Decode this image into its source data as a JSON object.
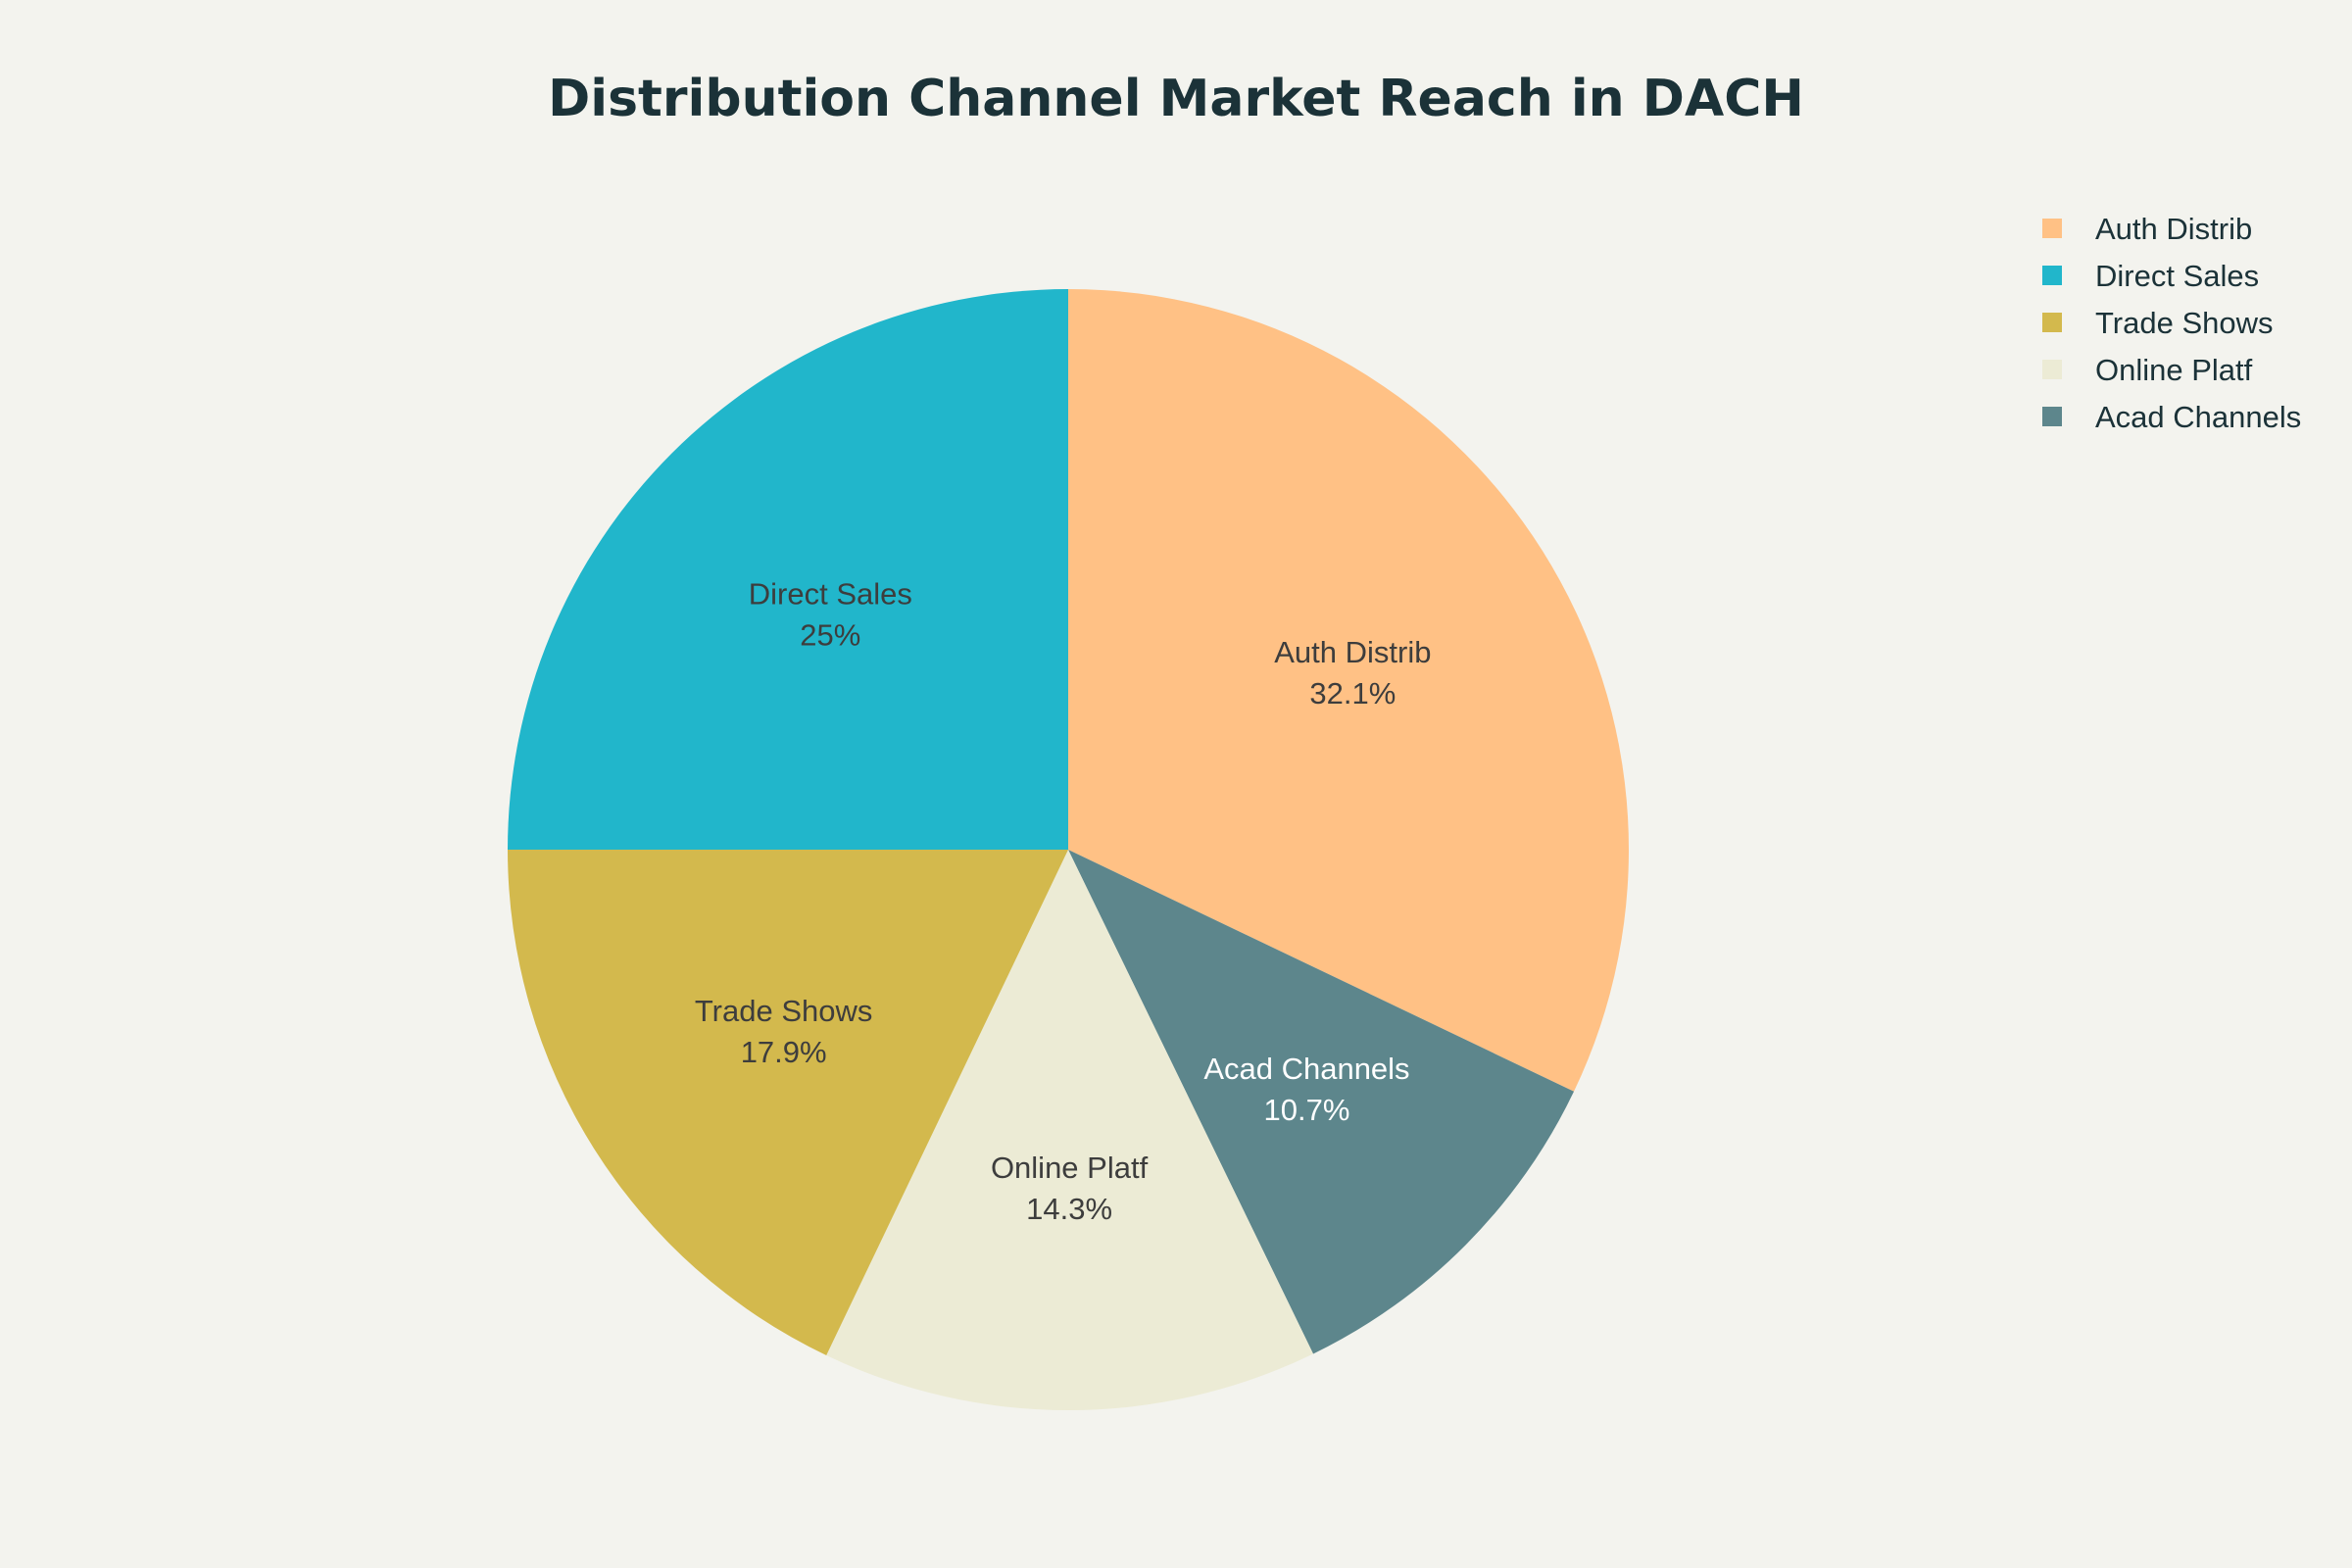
{
  "chart_data": {
    "type": "pie",
    "title": "Distribution Channel Market Reach in DACH",
    "categories": [
      "Auth Distrib",
      "Direct Sales",
      "Trade Shows",
      "Online Platf",
      "Acad Channels"
    ],
    "values": [
      32.1,
      25,
      17.9,
      14.3,
      10.7
    ],
    "value_labels": [
      "32.1%",
      "25%",
      "17.9%",
      "14.3%",
      "10.7%"
    ],
    "slice_order_clockwise_from_top": [
      "Auth Distrib",
      "Acad Channels",
      "Online Platf",
      "Trade Shows",
      "Direct Sales"
    ],
    "legend": {
      "placement": "top-right",
      "entries": [
        "Auth Distrib",
        "Direct Sales",
        "Trade Shows",
        "Online Platf",
        "Acad Channels"
      ]
    }
  },
  "colors": {
    "background": "#F3F3EE",
    "title": "#1B3238",
    "slices": {
      "Auth Distrib": "#FFC185",
      "Direct Sales": "#21B6CB",
      "Trade Shows": "#D3B94D",
      "Online Platf": "#ECEBD5",
      "Acad Channels": "#5D868C"
    },
    "label_dark": "#3D3D3D",
    "label_light": "#FFFFFF"
  }
}
